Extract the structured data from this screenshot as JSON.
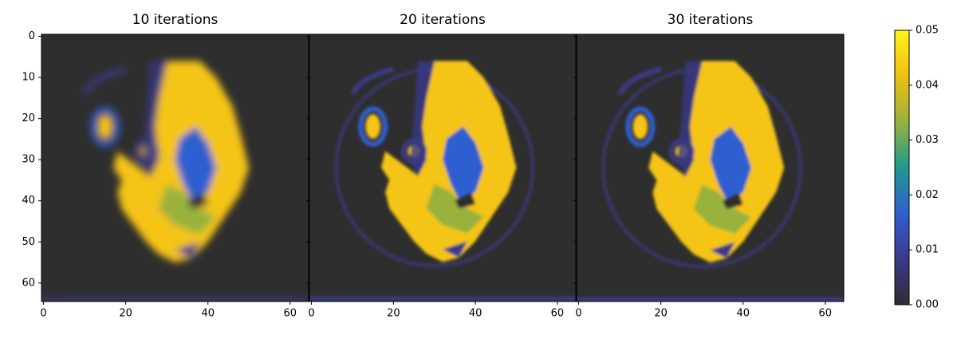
{
  "chart_data": [
    {
      "type": "image",
      "title": "10 iterations",
      "xlim": [
        -0.5,
        64.5
      ],
      "ylim": [
        64.5,
        -0.5
      ],
      "xticks": [
        0,
        20,
        40,
        60
      ],
      "yticks": [
        0,
        10,
        20,
        30,
        40,
        50,
        60
      ]
    },
    {
      "type": "image",
      "title": "20 iterations",
      "xlim": [
        -0.5,
        64.5
      ],
      "ylim": [
        64.5,
        -0.5
      ],
      "xticks": [
        0,
        20,
        40,
        60
      ]
    },
    {
      "type": "image",
      "title": "30 iterations",
      "xlim": [
        -0.5,
        64.5
      ],
      "ylim": [
        64.5,
        -0.5
      ],
      "xticks": [
        0,
        20,
        40,
        60
      ]
    },
    {
      "type": "colorbar",
      "ylim": [
        0,
        0.05
      ],
      "yticks": [
        {
          "value": 0,
          "label": "0.00"
        },
        {
          "value": 0.01,
          "label": "0.01"
        },
        {
          "value": 0.02,
          "label": "0.02"
        },
        {
          "value": 0.03,
          "label": "0.03"
        },
        {
          "value": 0.04,
          "label": "0.04"
        },
        {
          "value": 0.05,
          "label": "0.05"
        }
      ],
      "colors": [
        "#2e2e2e",
        "#3a3a8a",
        "#2f5fd0",
        "#1f9a8c",
        "#98b23e",
        "#f0bf10",
        "#fff51c"
      ]
    }
  ]
}
